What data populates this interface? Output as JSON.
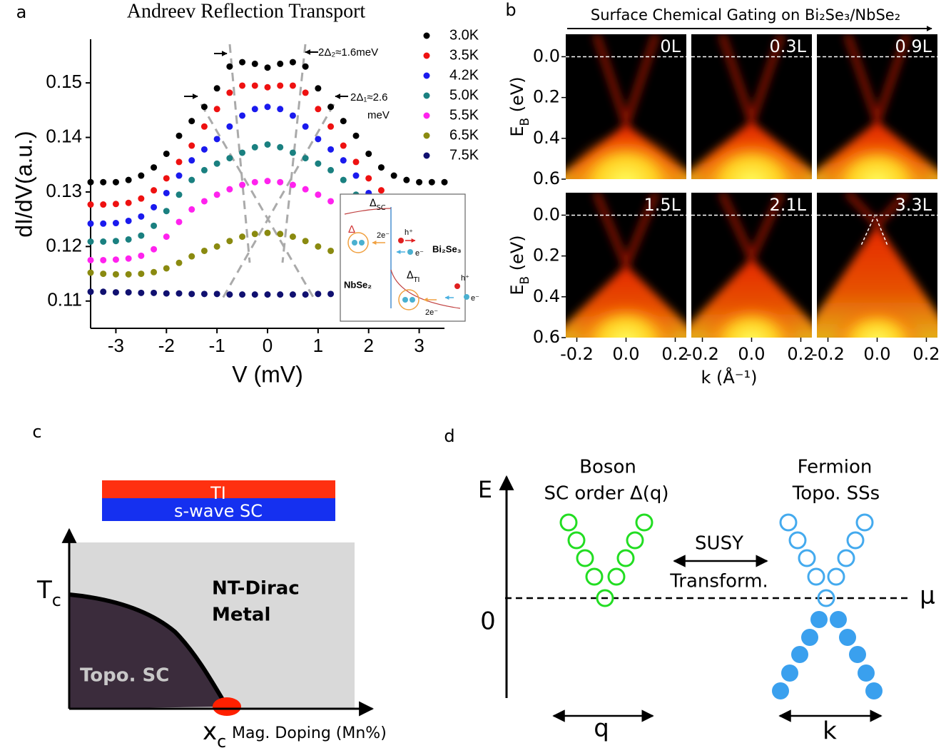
{
  "panel_labels": [
    "a",
    "b",
    "c",
    "d"
  ],
  "chart_data": {
    "type": "scatter",
    "title": "Andreev Reflection Transport",
    "xlabel": "V (mV)",
    "ylabel": "dI/dV(a.u.)",
    "x": [
      -3.5,
      -3.25,
      -3,
      -2.75,
      -2.5,
      -2.25,
      -2,
      -1.75,
      -1.5,
      -1.25,
      -1,
      -0.75,
      -0.5,
      -0.25,
      0,
      0.25,
      0.5,
      0.75,
      1,
      1.25,
      1.5,
      1.75,
      2,
      2.25,
      2.5,
      2.75,
      3,
      3.25,
      3.5
    ],
    "xlim": [
      -3.5,
      3.5
    ],
    "ylim": [
      0.105,
      0.158
    ],
    "xticks": [
      -3,
      -2,
      -1,
      0,
      1,
      2,
      3
    ],
    "yticks": [
      0.11,
      0.12,
      0.13,
      0.14,
      0.15
    ],
    "legend": "upper right",
    "series": [
      {
        "name": "3.0K",
        "color": "#000000",
        "values": [
          0.1318,
          0.1318,
          0.1318,
          0.1322,
          0.133,
          0.1345,
          0.137,
          0.1403,
          0.143,
          0.1456,
          0.149,
          0.153,
          0.1538,
          0.1535,
          0.1528,
          0.1535,
          0.1538,
          0.153,
          0.149,
          0.1456,
          0.143,
          0.1403,
          0.137,
          0.1345,
          0.133,
          0.1322,
          0.1318,
          0.1318,
          0.1318
        ]
      },
      {
        "name": "3.5K",
        "color": "#ee1111",
        "values": [
          0.1277,
          0.1277,
          0.1278,
          0.128,
          0.1288,
          0.1303,
          0.1325,
          0.1355,
          0.1385,
          0.142,
          0.1452,
          0.1482,
          0.1495,
          0.1495,
          0.1492,
          0.1495,
          0.1495,
          0.1482,
          0.1452,
          0.142,
          0.1385,
          0.1355,
          0.1325,
          0.1303,
          0.1288,
          0.128,
          0.1278,
          0.1277,
          0.1277
        ]
      },
      {
        "name": "4.2K",
        "color": "#1a1aee",
        "values": [
          0.1242,
          0.1242,
          0.1243,
          0.1247,
          0.1255,
          0.1272,
          0.1298,
          0.133,
          0.1358,
          0.1378,
          0.1397,
          0.142,
          0.144,
          0.1452,
          0.1456,
          0.1452,
          0.144,
          0.142,
          0.1397,
          0.1378,
          0.1358,
          0.133,
          0.1298,
          0.1272,
          0.1255,
          0.1247,
          0.1243,
          0.1242,
          0.1242
        ]
      },
      {
        "name": "5.0K",
        "color": "#1a8080",
        "values": [
          0.1209,
          0.1209,
          0.121,
          0.1213,
          0.122,
          0.1238,
          0.1265,
          0.1295,
          0.1322,
          0.134,
          0.1352,
          0.1362,
          0.1372,
          0.1382,
          0.1387,
          0.1382,
          0.1372,
          0.1362,
          0.1352,
          0.134,
          0.1322,
          0.1295,
          0.1265,
          0.1238,
          0.122,
          0.1213,
          0.121,
          0.1209,
          0.1209
        ]
      },
      {
        "name": "5.5K",
        "color": "#ff22ee",
        "values": [
          0.1175,
          0.1175,
          0.1176,
          0.1178,
          0.1183,
          0.1195,
          0.1218,
          0.1245,
          0.1268,
          0.1283,
          0.1295,
          0.1305,
          0.1313,
          0.1318,
          0.132,
          0.1318,
          0.1313,
          0.1305,
          0.1295,
          0.1283,
          0.1268,
          0.1245,
          0.1218,
          0.1195,
          0.1183,
          0.1178,
          0.1176,
          0.1175,
          0.1175
        ]
      },
      {
        "name": "6.5K",
        "color": "#8a8a10",
        "values": [
          0.1152,
          0.115,
          0.1149,
          0.1149,
          0.115,
          0.1153,
          0.116,
          0.117,
          0.1182,
          0.1192,
          0.12,
          0.121,
          0.1218,
          0.1223,
          0.1225,
          0.1223,
          0.1218,
          0.121,
          0.12,
          0.1192,
          0.1182,
          0.117,
          0.116,
          0.1153,
          0.115,
          0.1149,
          0.1149,
          0.115,
          0.1152
        ]
      },
      {
        "name": "7.5K",
        "color": "#101070",
        "values": [
          0.1117,
          0.1117,
          0.1116,
          0.1116,
          0.1115,
          0.1115,
          0.1114,
          0.1114,
          0.1113,
          0.1113,
          0.1113,
          0.1112,
          0.1112,
          0.1112,
          0.1112,
          0.1112,
          0.1112,
          0.1112,
          0.1113,
          0.1113,
          0.1113,
          0.1114,
          0.1114,
          0.1115,
          0.1115,
          0.1116,
          0.1116,
          0.1117,
          0.1117
        ]
      }
    ],
    "annotations": {
      "gap2": "2Δ₂≈1.6meV",
      "gap1": [
        "2Δ₁≈2.6",
        "meV"
      ]
    },
    "inset": {
      "delta": "Δ",
      "delta_sc": {
        "main": "Δ",
        "sub": "SC"
      },
      "delta_ti": {
        "main": "Δ",
        "sub": "TI"
      },
      "pair": "2e⁻",
      "hole": "h⁺",
      "electron": "e⁻",
      "ti": "Bi₂Se₃",
      "sc": "NbSe₂"
    }
  },
  "arpes": {
    "title": "Surface Chemical Gating on Bi₂Se₃/NbSe₂",
    "panels": [
      "0L",
      "0.3L",
      "0.9L",
      "1.5L",
      "2.1L",
      "3.3L"
    ],
    "ylabel": {
      "main": "E",
      "sub": "B",
      "unit": " (eV)"
    },
    "xlabel": "k (Å⁻¹)",
    "ylim": [
      0.6,
      -0.11
    ],
    "yticks": [
      {
        "value": 0,
        "label": "0.0"
      },
      0.2,
      0.4,
      0.6
    ],
    "xlim": [
      -0.245,
      0.245
    ],
    "xticks": [
      -0.2,
      {
        "value": 0,
        "label": "0.0"
      },
      0.2
    ]
  },
  "phase_diagram": {
    "layer_top": "TI",
    "layer_bottom": "s-wave SC",
    "tc": {
      "main": "T",
      "sub": "c"
    },
    "xc": {
      "main": "x",
      "sub": "c"
    },
    "xlabel": "Mag. Doping (Mn%)",
    "metal": [
      "NT-Dirac",
      "Metal"
    ],
    "sc": "Topo. SC"
  },
  "susy": {
    "axis": "E",
    "zero": "0",
    "mu": "μ",
    "boson": [
      "Boson",
      "SC order Δ(q)"
    ],
    "fermion": [
      "Fermion",
      "Topo. SSs"
    ],
    "transform": [
      "SUSY",
      "Transform."
    ],
    "q": "q",
    "k": "k"
  }
}
